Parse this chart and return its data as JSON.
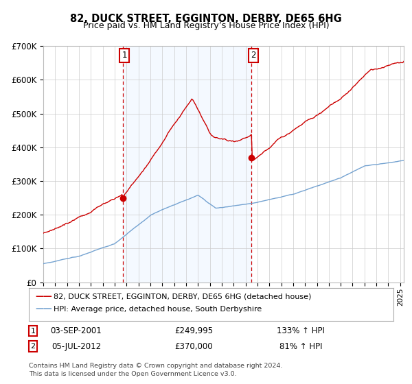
{
  "title": "82, DUCK STREET, EGGINTON, DERBY, DE65 6HG",
  "subtitle": "Price paid vs. HM Land Registry’s House Price Index (HPI)",
  "legend_line1": "82, DUCK STREET, EGGINTON, DERBY, DE65 6HG (detached house)",
  "legend_line2": "HPI: Average price, detached house, South Derbyshire",
  "footnote1": "Contains HM Land Registry data © Crown copyright and database right 2024.",
  "footnote2": "This data is licensed under the Open Government Licence v3.0.",
  "sale1_date": "03-SEP-2001",
  "sale1_price": 249995,
  "sale1_price_str": "£249,995",
  "sale1_label": "133% ↑ HPI",
  "sale1_year": 2001.67,
  "sale2_date": "05-JUL-2012",
  "sale2_price": 370000,
  "sale2_price_str": "£370,000",
  "sale2_label": "81% ↑ HPI",
  "sale2_year": 2012.5,
  "ylim": [
    0,
    700000
  ],
  "yticks": [
    0,
    100000,
    200000,
    300000,
    400000,
    500000,
    600000,
    700000
  ],
  "xlim_start": 1995,
  "xlim_end": 2025.3,
  "red_color": "#cc0000",
  "blue_color": "#6699cc",
  "shade_color": "#ddeeff",
  "grid_color": "#cccccc",
  "legend_edge_color": "#aaaaaa"
}
